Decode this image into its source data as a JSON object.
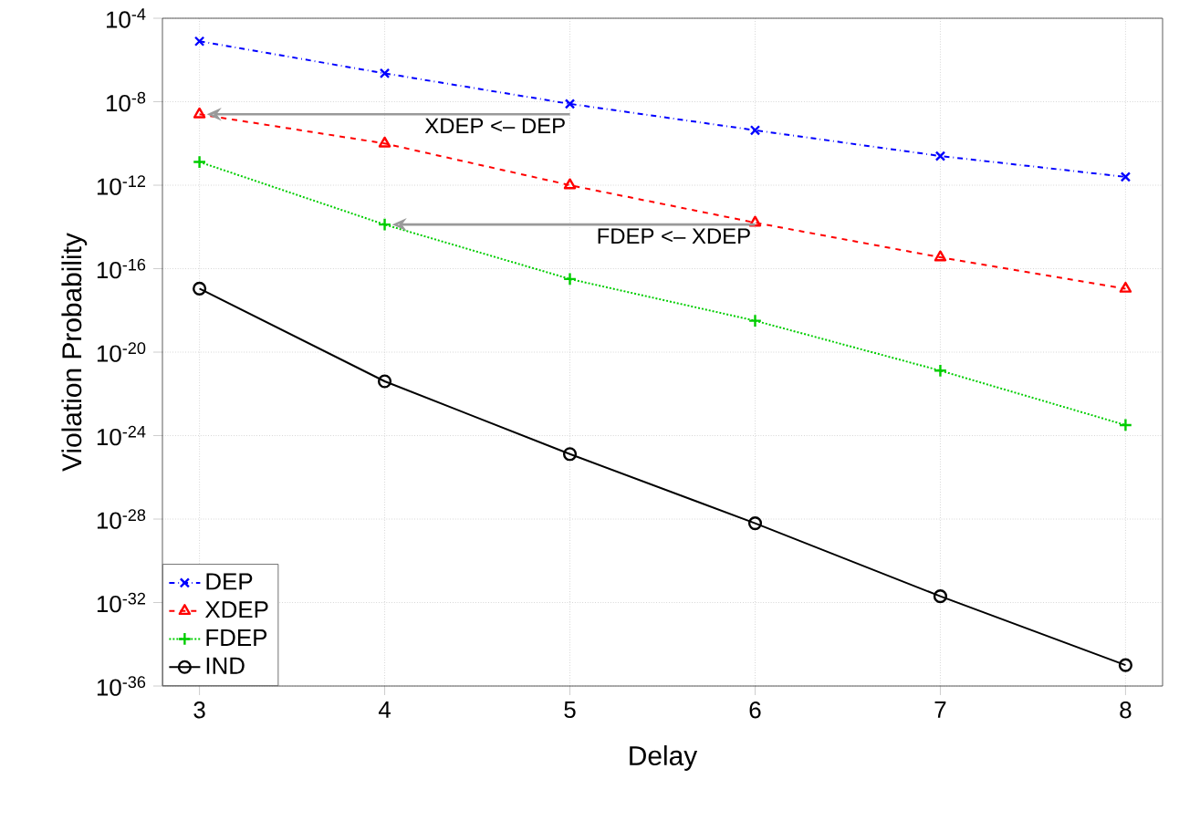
{
  "chart_data": {
    "type": "line",
    "xlabel": "Delay",
    "ylabel": "Violation Probability",
    "x": [
      3,
      4,
      5,
      6,
      7,
      8
    ],
    "series": [
      {
        "name": "DEP",
        "color": "#0000ff",
        "marker": "cross",
        "line_style": "dashdot",
        "values": [
          7.9e-06,
          2.3e-07,
          7.9e-09,
          4.3e-10,
          2.5e-11,
          2.5e-12
        ]
      },
      {
        "name": "XDEP",
        "color": "#ff0000",
        "marker": "triangle",
        "line_style": "dashed",
        "values": [
          2.5e-09,
          1e-10,
          1e-12,
          1.6e-14,
          3.5e-16,
          1.1e-17
        ]
      },
      {
        "name": "FDEP",
        "color": "#00cd00",
        "marker": "plus",
        "line_style": "dotted",
        "values": [
          1.3e-11,
          1.3e-14,
          3.2e-17,
          3.2e-19,
          1.3e-21,
          3.2e-24
        ]
      },
      {
        "name": "IND",
        "color": "#000000",
        "marker": "circle",
        "line_style": "solid",
        "values": [
          1.1e-17,
          4e-22,
          1.3e-25,
          6.3e-29,
          2e-32,
          1e-35
        ]
      }
    ],
    "log": "y",
    "xlim": [
      2.8,
      8.2
    ],
    "ylim": [
      1e-36,
      0.0001
    ],
    "xticks": [
      3,
      4,
      5,
      6,
      7,
      8
    ],
    "yticks": [
      {
        "value": 0.0001,
        "label": "10$^{-4}$"
      },
      {
        "value": 1e-08,
        "label": "10$^{-8}$"
      },
      {
        "value": 1e-12,
        "label": "10$^{-12}$"
      },
      {
        "value": 1e-16,
        "label": "10$^{-16}$"
      },
      {
        "value": 1e-20,
        "label": "10$^{-20}$"
      },
      {
        "value": 1e-24,
        "label": "10$^{-24}$"
      },
      {
        "value": 1e-28,
        "label": "10$^{-28}$"
      },
      {
        "value": 1e-32,
        "label": "10$^{-32}$"
      },
      {
        "value": 1e-36,
        "label": "10$^{-36}$"
      }
    ],
    "grid": true,
    "legend": "bottom left",
    "annotations": [
      {
        "text": "XDEP <– DEP",
        "x": 3,
        "y": 2.5e-09
      },
      {
        "text": "FDEP <– XDEP",
        "x": 4,
        "y": 1.3e-14
      }
    ]
  }
}
